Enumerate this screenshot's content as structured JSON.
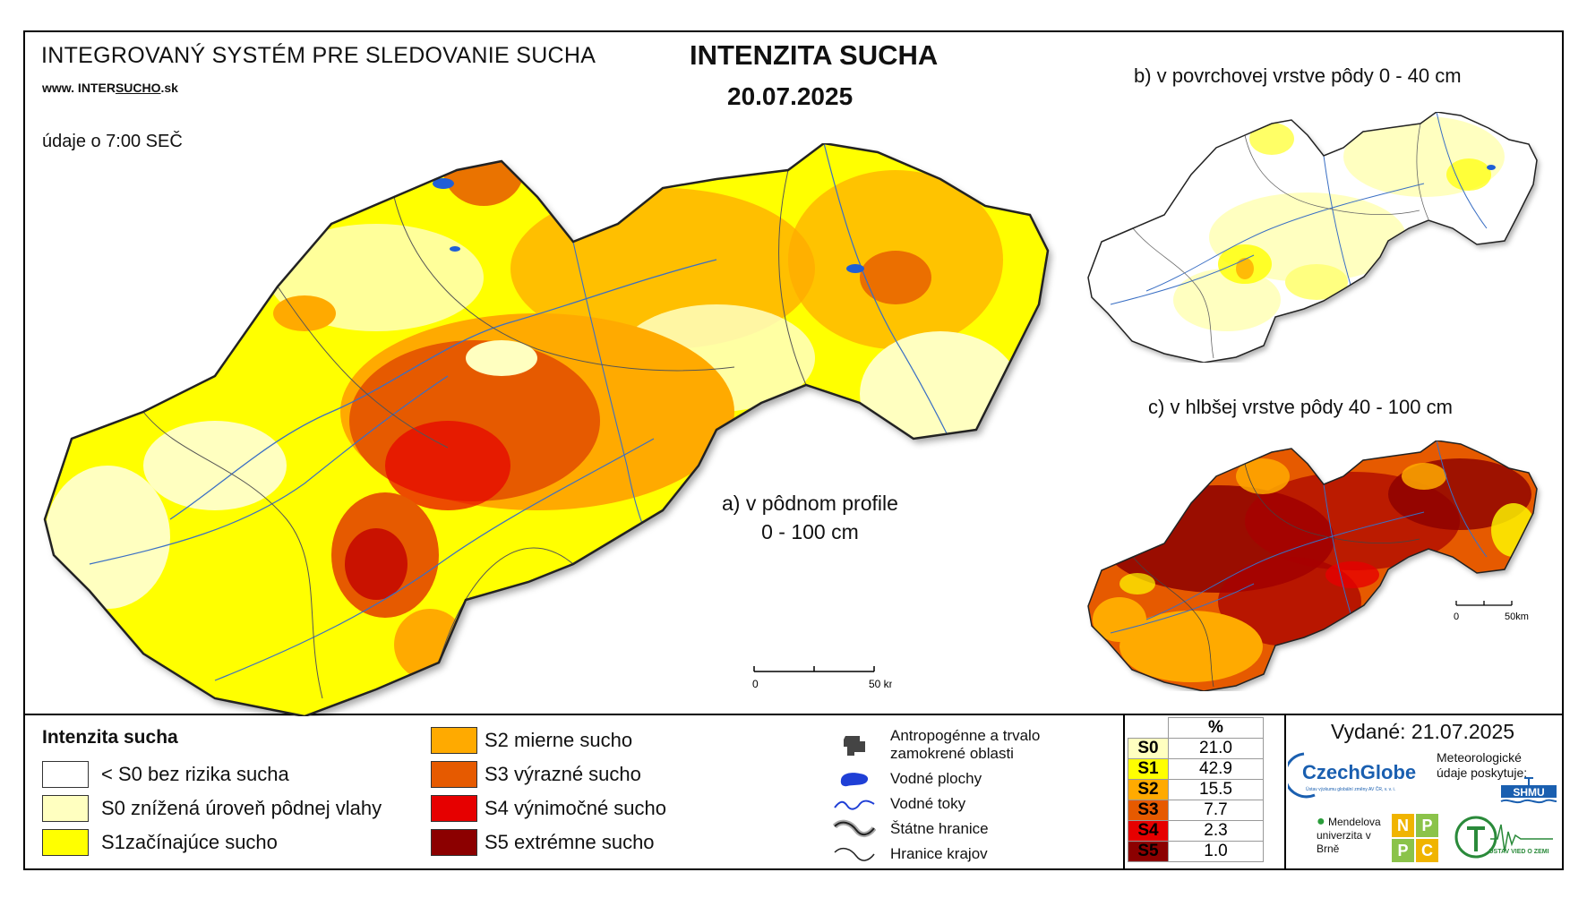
{
  "header": {
    "system_name": "INTEGROVANÝ SYSTÉM PRE SLEDOVANIE SUCHA",
    "website_prefix": "www. INTER",
    "website_mid": "SUCHO",
    "website_suffix": ".sk",
    "observation_time": "údaje o 7:00 SEČ",
    "title": "INTENZITA SUCHA",
    "date": "20.07.2025"
  },
  "maps": {
    "a_label_line1": "a) v pôdnom profile",
    "a_label_line2": "0 - 100 cm",
    "b_label": "b) v povrchovej vrstve pôdy 0 - 40 cm",
    "c_label": "c) v hlbšej vrstve pôdy 40 - 100 cm",
    "scale_main": {
      "start": "0",
      "end": "50 km"
    },
    "scale_small": {
      "start": "0",
      "end": "50km"
    }
  },
  "legend": {
    "title": "Intenzita sucha",
    "items": [
      {
        "label": "< S0 bez rizika sucha",
        "color": "#ffffff"
      },
      {
        "label": "S0 znížená úroveň pôdnej vlahy",
        "color": "#ffffc0"
      },
      {
        "label": "S1začínajúce sucho",
        "color": "#ffff00"
      },
      {
        "label": "S2 mierne sucho",
        "color": "#ffaa00"
      },
      {
        "label": "S3 výrazné sucho",
        "color": "#e65a00"
      },
      {
        "label": "S4 výnimočné sucho",
        "color": "#e60000"
      },
      {
        "label": "S5 extrémne sucho",
        "color": "#8c0000"
      }
    ]
  },
  "symbols": [
    {
      "label": "Antropogénne a trvalo zamokrené oblasti",
      "icon": "urban-area-icon"
    },
    {
      "label": "Vodné plochy",
      "icon": "water-body-icon"
    },
    {
      "label": "Vodné toky",
      "icon": "river-icon"
    },
    {
      "label": "Štátne hranice",
      "icon": "state-border-icon"
    },
    {
      "label": "Hranice krajov",
      "icon": "region-border-icon"
    }
  ],
  "percent_table": {
    "header": "%",
    "rows": [
      {
        "class": "S0",
        "value": "21.0",
        "color": "#ffffc0"
      },
      {
        "class": "S1",
        "value": "42.9",
        "color": "#ffff00"
      },
      {
        "class": "S2",
        "value": "15.5",
        "color": "#ffaa00"
      },
      {
        "class": "S3",
        "value": "7.7",
        "color": "#e65a00"
      },
      {
        "class": "S4",
        "value": "2.3",
        "color": "#e60000"
      },
      {
        "class": "S5",
        "value": "1.0",
        "color": "#8c0000"
      }
    ]
  },
  "footer": {
    "issued": "Vydané: 21.07.2025",
    "czechglobe": "CzechGlobe",
    "czechglobe_sub": "Ústav výzkumu globální změny AV ČR, v. v. i.",
    "meteo_text": "Meteorologické údaje poskytuje:",
    "shmu": "SHMU",
    "mendel": "Mendelova univerzita v Brně",
    "npp": [
      "N",
      "P",
      "P",
      "C"
    ],
    "uvz": "ÚSTAV VIED O ZEMI"
  }
}
